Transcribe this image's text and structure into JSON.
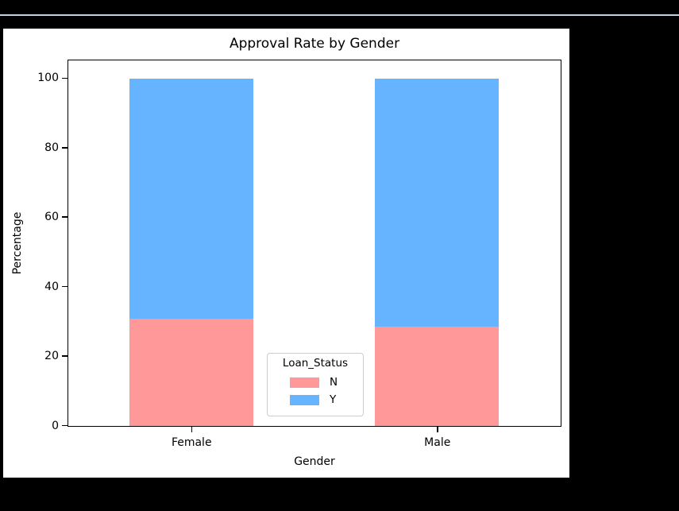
{
  "page": {
    "background_color": "#000000",
    "separator_color": "#b9d5e7",
    "figure_background_color": "#ffffff"
  },
  "chart_data": {
    "type": "bar",
    "subtype": "stacked",
    "title": "Approval Rate by Gender",
    "xlabel": "Gender",
    "ylabel": "Percentage",
    "categories": [
      "Female",
      "Male"
    ],
    "series": [
      {
        "name": "N",
        "color": "#FF9999",
        "values": [
          30.8,
          28.5
        ]
      },
      {
        "name": "Y",
        "color": "#66B3FF",
        "values": [
          69.2,
          71.5
        ]
      }
    ],
    "legend_title": "Loan_Status",
    "legend_position": "inside-lower-center",
    "ylim": [
      0,
      105
    ],
    "yticks": [
      0,
      20,
      40,
      60,
      80,
      100
    ],
    "grid": false,
    "bar_total": 100
  }
}
